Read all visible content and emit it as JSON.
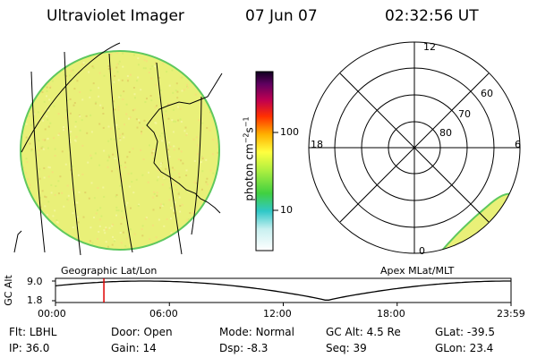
{
  "header": {
    "title": "Ultraviolet Imager",
    "date": "07 Jun 07",
    "time": "02:32:56 UT"
  },
  "colorbar": {
    "unit_label": "photon cm",
    "unit_sup1": "−2",
    "unit_mid": "s",
    "unit_sup2": "−1",
    "ticks": [
      "100",
      "10"
    ]
  },
  "panels": {
    "left_caption": "Geographic Lat/Lon",
    "right_caption": "Apex MLat/MLT"
  },
  "polar": {
    "mlt_labels": {
      "top": "12",
      "left": "18",
      "right": "6",
      "bottom": "0"
    },
    "mlat_labels": [
      "60",
      "70",
      "80"
    ]
  },
  "altitude_plot": {
    "ylabel": "GC Alt",
    "ymax_label": "9.0",
    "ymin_label": "1.8",
    "xticks": [
      "00:00",
      "06:00",
      "12:00",
      "18:00",
      "23:59"
    ],
    "current_time_marker_hours": 2.55
  },
  "info": {
    "filter": {
      "key": "Flt:",
      "val": "LBHL"
    },
    "ip": {
      "key": "IP:",
      "val": "36.0"
    },
    "door": {
      "key": "Door:",
      "val": "Open"
    },
    "gain": {
      "key": "Gain:",
      "val": "14"
    },
    "mode": {
      "key": "Mode:",
      "val": "Normal"
    },
    "dsp": {
      "key": "Dsp:",
      "val": "-8.3"
    },
    "gcalt": {
      "key": "GC Alt:",
      "val": "4.5 Re"
    },
    "seq": {
      "key": "Seq:",
      "val": "39"
    },
    "glat": {
      "key": "GLat:",
      "val": "-39.5"
    },
    "glon": {
      "key": "GLon:",
      "val": "23.4"
    }
  },
  "colors": {
    "marker": "#e00000",
    "disk_fill": "#e9f078",
    "disk_edge": "#5ec85e"
  }
}
